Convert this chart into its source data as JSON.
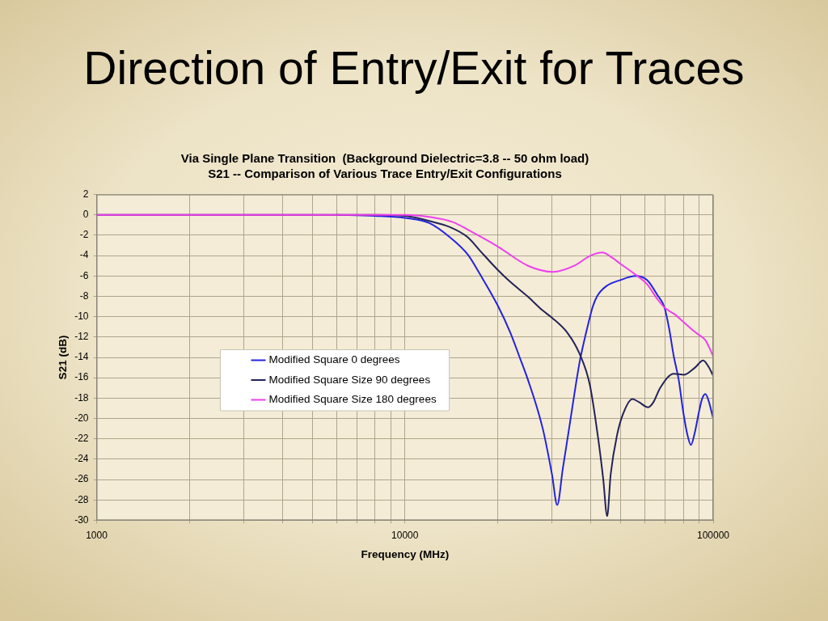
{
  "chart_data": {
    "type": "line",
    "title": "Direction of Entry/Exit for Traces",
    "subtitle": "Via Single Plane Transition  (Background Dielectric=3.8 -- 50 ohm load)\nS21 -- Comparison of Various Trace Entry/Exit Configurations",
    "xlabel": "Frequency (MHz)",
    "ylabel": "S21 (dB)",
    "series": [
      {
        "name": "Modified Square 0 degrees",
        "color": "#2323e0",
        "x": [
          6000,
          8000,
          10000,
          12000,
          14000,
          16000,
          17500,
          20000,
          22000,
          23500,
          25000,
          28000,
          30000,
          31200,
          32500,
          34000,
          36800,
          38000,
          39400,
          40700,
          42000,
          45000,
          50000,
          56000,
          61000,
          66000,
          69500,
          72000,
          74500,
          77300,
          80000,
          82500,
          84700,
          87000,
          90000,
          92000,
          94300,
          96500,
          100000
        ],
        "values": [
          0,
          -0.1,
          -0.3,
          -0.8,
          -2.2,
          -3.9,
          -5.8,
          -8.9,
          -11.6,
          -13.9,
          -16.1,
          -21,
          -25.5,
          -28.5,
          -25,
          -21.2,
          -14.6,
          -12.6,
          -10.6,
          -9,
          -8,
          -7,
          -6.4,
          -6,
          -6.4,
          -7.9,
          -9.1,
          -11.2,
          -13.9,
          -16.2,
          -19.4,
          -21.6,
          -22.6,
          -21.5,
          -19.3,
          -18.1,
          -17.6,
          -18.2,
          -20
        ]
      },
      {
        "name": "Modified Square Size 90 degrees",
        "color": "#23235a",
        "x": [
          1000,
          2000,
          4000,
          6000,
          8000,
          10000,
          12000,
          14000,
          16000,
          17500,
          20000,
          22000,
          25000,
          28000,
          30000,
          33700,
          36800,
          39800,
          42500,
          44000,
          45300,
          46500,
          48800,
          51100,
          54700,
          57500,
          61500,
          64000,
          67300,
          74500,
          80500,
          87300,
          92800,
          96500,
          100000
        ],
        "values": [
          0,
          0,
          0,
          0,
          0,
          -0.1,
          -0.6,
          -1.2,
          -2.2,
          -3.5,
          -5.4,
          -6.6,
          -8,
          -9.4,
          -10.1,
          -11.6,
          -13.6,
          -16.7,
          -22.3,
          -26,
          -29.6,
          -25.5,
          -21.6,
          -19.5,
          -18.1,
          -18.4,
          -18.9,
          -18.4,
          -17,
          -15.6,
          -15.7,
          -15,
          -14.3,
          -14.9,
          -15.8
        ]
      },
      {
        "name": "Modified Square Size 180 degrees",
        "color": "#ee3fee",
        "x": [
          1000,
          2000,
          4000,
          6000,
          8000,
          10000,
          12000,
          14300,
          16100,
          20000,
          25100,
          30300,
          35400,
          40000,
          43700,
          47000,
          50000,
          56200,
          61000,
          66000,
          69500,
          76000,
          80000,
          87300,
          90000,
          94300,
          97000,
          100000
        ],
        "values": [
          0,
          0,
          0,
          0,
          0,
          0,
          -0.2,
          -0.7,
          -1.5,
          -3.1,
          -5,
          -5.6,
          -5,
          -4,
          -3.7,
          -4.2,
          -4.8,
          -5.9,
          -6.8,
          -8.3,
          -9.1,
          -9.9,
          -10.5,
          -11.5,
          -11.8,
          -12.3,
          -13,
          -13.9
        ]
      }
    ],
    "log": "x",
    "xlim": [
      1000,
      100000
    ],
    "xticks": [
      1000,
      {
        "value": 2000,
        "label": null
      },
      {
        "value": 3000,
        "label": null
      },
      {
        "value": 4000,
        "label": null
      },
      {
        "value": 5000,
        "label": null
      },
      {
        "value": 6000,
        "label": null
      },
      {
        "value": 7000,
        "label": null
      },
      {
        "value": 8000,
        "label": null
      },
      {
        "value": 9000,
        "label": null
      },
      10000,
      {
        "value": 20000,
        "label": null
      },
      {
        "value": 30000,
        "label": null
      },
      {
        "value": 40000,
        "label": null
      },
      {
        "value": 50000,
        "label": null
      },
      {
        "value": 60000,
        "label": null
      },
      {
        "value": 70000,
        "label": null
      },
      {
        "value": 80000,
        "label": null
      },
      {
        "value": 90000,
        "label": null
      },
      100000
    ],
    "ylim": [
      -30,
      2
    ],
    "yticks": [
      -30,
      -28,
      -26,
      -24,
      -22,
      -20,
      -18,
      -16,
      -14,
      -12,
      -10,
      -8,
      -6,
      -4,
      -2,
      0,
      2
    ],
    "grid": true,
    "legend": "left",
    "marker": "none",
    "line_style": "solid"
  }
}
